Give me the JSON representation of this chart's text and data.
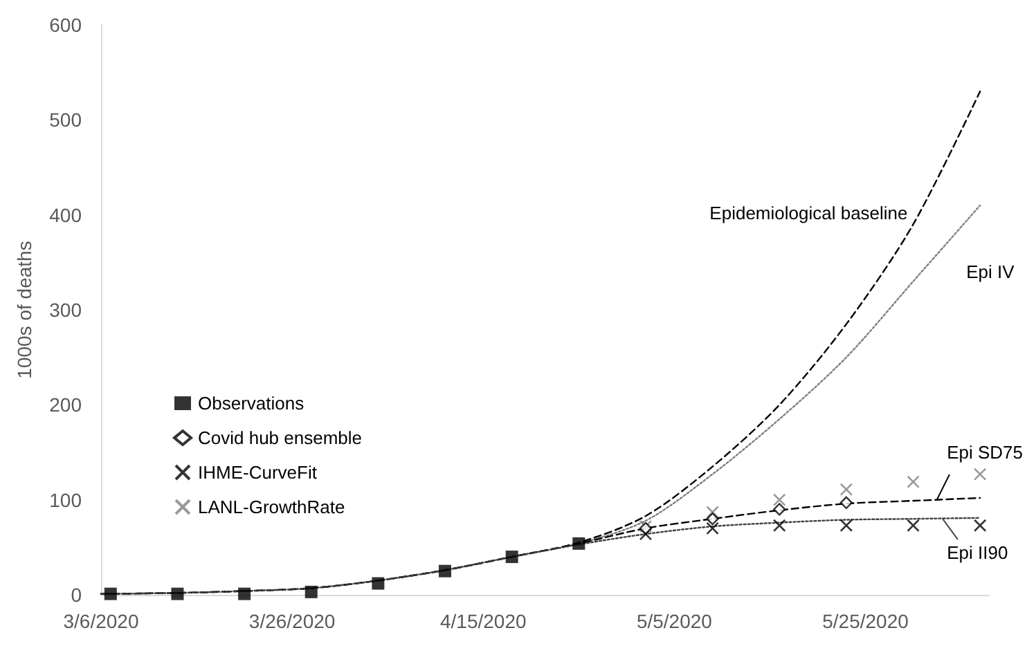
{
  "chart_data": {
    "type": "line",
    "ylabel": "1000s of deaths",
    "xlim": [
      "2020-03-06",
      "2020-06-07"
    ],
    "xticks": [
      {
        "value": "2020-03-06",
        "label": "3/6/2020"
      },
      {
        "value": "2020-03-26",
        "label": "3/26/2020"
      },
      {
        "value": "2020-04-15",
        "label": "4/15/2020"
      },
      {
        "value": "2020-05-05",
        "label": "5/5/2020"
      },
      {
        "value": "2020-05-25",
        "label": "5/25/2020"
      }
    ],
    "ylim": [
      0,
      600
    ],
    "yticks": [
      0,
      100,
      200,
      300,
      400,
      500,
      600
    ],
    "grid": false,
    "legend": "left",
    "series": [
      {
        "name": "Epidemiological baseline",
        "color": "#000000",
        "line_style": "dashed",
        "marker": "none",
        "x": [
          "2020-03-06",
          "2020-03-14",
          "2020-03-21",
          "2020-03-28",
          "2020-04-04",
          "2020-04-11",
          "2020-04-18",
          "2020-04-25",
          "2020-05-02",
          "2020-05-09",
          "2020-05-16",
          "2020-05-23",
          "2020-05-30",
          "2020-06-06"
        ],
        "values": [
          1,
          2,
          4,
          7,
          15,
          26,
          40,
          55,
          83,
          135,
          200,
          285,
          390,
          530
        ]
      },
      {
        "name": "Epi IV",
        "color": "#7f7f7f",
        "line_style": "dotted",
        "marker": "none",
        "x": [
          "2020-03-06",
          "2020-03-14",
          "2020-03-21",
          "2020-03-28",
          "2020-04-04",
          "2020-04-11",
          "2020-04-18",
          "2020-04-25",
          "2020-05-02",
          "2020-05-09",
          "2020-05-16",
          "2020-05-23",
          "2020-05-30",
          "2020-06-06"
        ],
        "values": [
          1,
          2,
          4,
          7,
          15,
          26,
          40,
          54,
          78,
          127,
          185,
          250,
          330,
          410
        ]
      },
      {
        "name": "Epi SD75",
        "color": "#000000",
        "line_style": "dashed",
        "marker": "none",
        "x": [
          "2020-03-06",
          "2020-03-14",
          "2020-03-21",
          "2020-03-28",
          "2020-04-04",
          "2020-04-11",
          "2020-04-18",
          "2020-04-25",
          "2020-05-02",
          "2020-05-09",
          "2020-05-16",
          "2020-05-23",
          "2020-05-30",
          "2020-06-06"
        ],
        "values": [
          1,
          2,
          4,
          7,
          15,
          26,
          40,
          54,
          70,
          80,
          89,
          96,
          99,
          102
        ]
      },
      {
        "name": "Epi II90",
        "color": "#404040",
        "line_style": "dotted",
        "marker": "none",
        "x": [
          "2020-03-06",
          "2020-03-14",
          "2020-03-21",
          "2020-03-28",
          "2020-04-04",
          "2020-04-11",
          "2020-04-18",
          "2020-04-25",
          "2020-05-02",
          "2020-05-09",
          "2020-05-16",
          "2020-05-23",
          "2020-05-30",
          "2020-06-06"
        ],
        "values": [
          1,
          2,
          4,
          7,
          15,
          26,
          40,
          53,
          64,
          72,
          76,
          79,
          80,
          81
        ]
      },
      {
        "name": "Observations",
        "type": "scatter",
        "color": "#000000",
        "marker": "square",
        "x": [
          "2020-03-07",
          "2020-03-14",
          "2020-03-21",
          "2020-03-28",
          "2020-04-04",
          "2020-04-11",
          "2020-04-18",
          "2020-04-25"
        ],
        "values": [
          1,
          1,
          1,
          3,
          12,
          25,
          40,
          54
        ]
      },
      {
        "name": "Covid hub ensemble",
        "type": "scatter",
        "color": "#000000",
        "marker": "diamond",
        "x": [
          "2020-05-02",
          "2020-05-09",
          "2020-05-16",
          "2020-05-23"
        ],
        "values": [
          70,
          80,
          90,
          97
        ]
      },
      {
        "name": "IHME-CurveFit",
        "type": "scatter",
        "color": "#000000",
        "marker": "cross",
        "x": [
          "2020-05-02",
          "2020-05-09",
          "2020-05-16",
          "2020-05-23",
          "2020-05-30",
          "2020-06-06"
        ],
        "values": [
          64,
          70,
          73,
          73,
          73,
          73
        ]
      },
      {
        "name": "LANL-GrowthRate",
        "type": "scatter",
        "color": "#7f7f7f",
        "marker": "cross",
        "x": [
          "2020-05-02",
          "2020-05-09",
          "2020-05-16",
          "2020-05-23",
          "2020-05-30",
          "2020-06-06"
        ],
        "values": [
          72,
          87,
          100,
          111,
          119,
          127
        ]
      }
    ]
  }
}
